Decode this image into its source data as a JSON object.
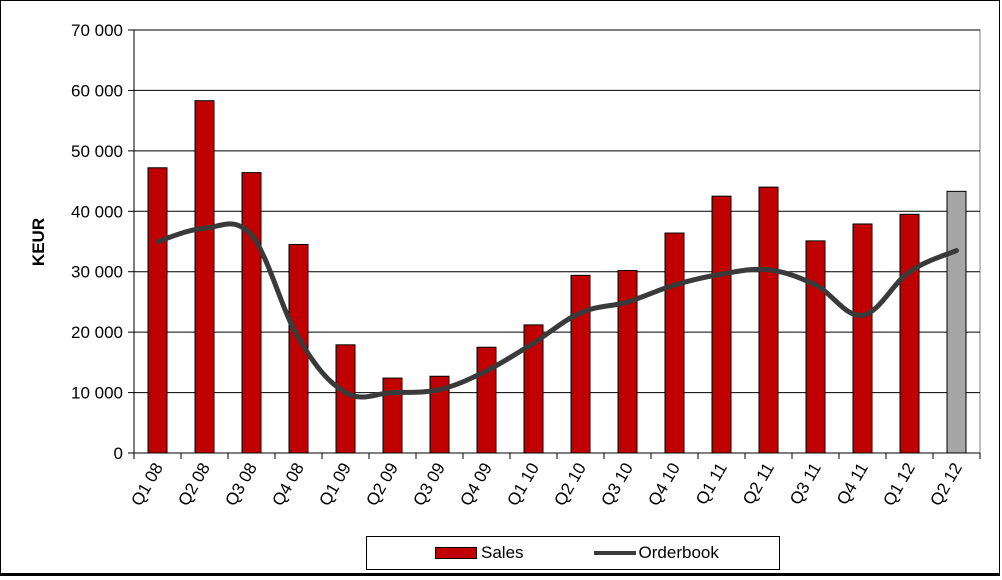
{
  "chart_data": {
    "type": "bar",
    "categories": [
      "Q1 08",
      "Q2 08",
      "Q3 08",
      "Q4 08",
      "Q1 09",
      "Q2 09",
      "Q3 09",
      "Q4 09",
      "Q1 10",
      "Q2 10",
      "Q3 10",
      "Q4 10",
      "Q1 11",
      "Q2 11",
      "Q3 11",
      "Q4 11",
      "Q1 12",
      "Q2 12"
    ],
    "series": [
      {
        "name": "Sales",
        "kind": "bar",
        "color": "#c00000",
        "highlight_color": "#a6a6a6",
        "highlight_index": 17,
        "values": [
          47200,
          58300,
          46400,
          34500,
          17900,
          12400,
          12700,
          17500,
          21200,
          29400,
          30200,
          36400,
          42500,
          44000,
          35100,
          37900,
          39500,
          43300
        ]
      },
      {
        "name": "Orderbook",
        "kind": "line",
        "color": "#3a3a3a",
        "values": [
          35000,
          37200,
          36000,
          19000,
          10000,
          10000,
          10500,
          13600,
          18200,
          23200,
          25000,
          27800,
          29600,
          30300,
          27800,
          22800,
          30000,
          33500
        ]
      }
    ],
    "ylabel": "KEUR",
    "xlabel": "",
    "ylim": [
      0,
      70000
    ],
    "yticks": [
      0,
      10000,
      20000,
      30000,
      40000,
      50000,
      60000,
      70000
    ],
    "ytick_labels": [
      "0",
      "10 000",
      "20 000",
      "30 000",
      "40 000",
      "50 000",
      "60 000",
      "70 000"
    ],
    "grid": "horizontal",
    "legend_position": "bottom"
  }
}
